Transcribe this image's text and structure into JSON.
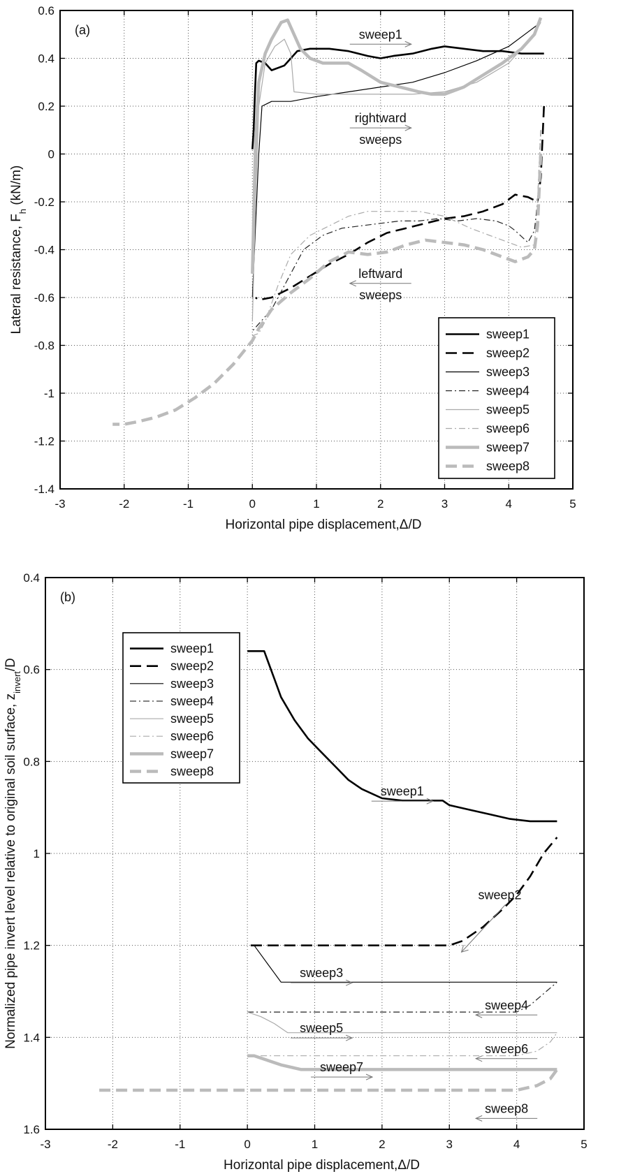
{
  "chart_data": [
    {
      "id": "a",
      "type": "line",
      "panel_label": "(a)",
      "xlabel": "Horizontal pipe displacement,Δ/D",
      "ylabel_main": "Lateral resistance, F",
      "ylabel_sub": "h",
      "ylabel_unit": " (kN/m)",
      "xlim": [
        -3,
        5
      ],
      "ylim": [
        -1.4,
        0.6
      ],
      "xticks": [
        -3,
        -2,
        -1,
        0,
        1,
        2,
        3,
        4,
        5
      ],
      "yticks": [
        0.6,
        0.4,
        0.2,
        0,
        -0.2,
        -0.4,
        -0.6,
        -0.8,
        -1,
        -1.2,
        -1.4
      ],
      "xtick_labels": [
        "-3",
        "-2",
        "-1",
        "0",
        "1",
        "2",
        "3",
        "4",
        "5"
      ],
      "ytick_labels": [
        "0.6",
        "0.4",
        "0.2",
        "0",
        "-0.2",
        "-0.4",
        "-0.6",
        "-0.8",
        "-1",
        "-1.2",
        "-1.4"
      ],
      "grid": true,
      "legend_position": "bottom-right",
      "annotations": [
        {
          "text": "sweep1",
          "x": 2.0,
          "y": 0.5,
          "arrow": "right"
        },
        {
          "text": "rightward",
          "x": 2.0,
          "y": 0.15,
          "arrow": "right"
        },
        {
          "text": "sweeps",
          "x": 2.0,
          "y": 0.06,
          "arrow": "none"
        },
        {
          "text": "leftward",
          "x": 2.0,
          "y": -0.5,
          "arrow": "left"
        },
        {
          "text": "sweeps",
          "x": 2.0,
          "y": -0.59,
          "arrow": "none"
        }
      ],
      "series": [
        {
          "name": "sweep1",
          "color": "#000000",
          "style": "solid",
          "width": 2.6,
          "x": [
            0,
            0.02,
            0.04,
            0.06,
            0.1,
            0.2,
            0.3,
            0.5,
            0.7,
            0.9,
            1.2,
            1.5,
            1.8,
            2.0,
            2.2,
            2.5,
            2.8,
            3.0,
            3.3,
            3.6,
            3.9,
            4.2,
            4.5,
            4.55
          ],
          "y": [
            0.02,
            0.1,
            0.25,
            0.38,
            0.39,
            0.38,
            0.35,
            0.37,
            0.43,
            0.44,
            0.44,
            0.43,
            0.41,
            0.4,
            0.41,
            0.42,
            0.44,
            0.45,
            0.44,
            0.43,
            0.43,
            0.42,
            0.42,
            0.42
          ]
        },
        {
          "name": "sweep2",
          "color": "#000000",
          "style": "dashed",
          "width": 2.6,
          "x": [
            4.55,
            4.5,
            4.45,
            4.3,
            4.1,
            3.9,
            3.6,
            3.3,
            3.0,
            2.7,
            2.4,
            2.1,
            1.8,
            1.5,
            1.2,
            0.9,
            0.6,
            0.3,
            0.1,
            0.05
          ],
          "y": [
            0.2,
            -0.1,
            -0.2,
            -0.18,
            -0.17,
            -0.21,
            -0.24,
            -0.26,
            -0.27,
            -0.29,
            -0.31,
            -0.33,
            -0.37,
            -0.42,
            -0.46,
            -0.51,
            -0.56,
            -0.6,
            -0.61,
            -0.6
          ]
        },
        {
          "name": "sweep3",
          "color": "#000000",
          "style": "solid",
          "width": 1.2,
          "x": [
            0,
            0.05,
            0.1,
            0.15,
            0.3,
            0.6,
            1.0,
            1.5,
            2.0,
            2.5,
            3.0,
            3.5,
            4.0,
            4.3,
            4.5
          ],
          "y": [
            -0.6,
            -0.3,
            0.0,
            0.2,
            0.22,
            0.22,
            0.24,
            0.26,
            0.28,
            0.3,
            0.34,
            0.39,
            0.45,
            0.51,
            0.55
          ]
        },
        {
          "name": "sweep4",
          "color": "#222222",
          "style": "dashdot",
          "width": 1.2,
          "x": [
            4.5,
            4.45,
            4.4,
            4.3,
            4.1,
            4.0,
            3.8,
            3.5,
            3.2,
            2.9,
            2.6,
            2.3,
            2.0,
            1.7,
            1.4,
            1.1,
            0.8,
            0.5,
            0.3,
            0.1,
            0.0
          ],
          "y": [
            0.1,
            -0.2,
            -0.32,
            -0.37,
            -0.32,
            -0.3,
            -0.28,
            -0.27,
            -0.28,
            -0.27,
            -0.28,
            -0.28,
            -0.29,
            -0.3,
            -0.31,
            -0.34,
            -0.4,
            -0.55,
            -0.65,
            -0.71,
            -0.74
          ]
        },
        {
          "name": "sweep5",
          "color": "#aaaaaa",
          "style": "solid",
          "width": 1.2,
          "x": [
            0,
            0.05,
            0.1,
            0.2,
            0.35,
            0.5,
            0.6,
            0.65,
            1.0,
            1.5,
            2.0,
            2.5,
            3.0,
            3.5,
            4.0,
            4.4,
            4.5
          ],
          "y": [
            -0.7,
            -0.2,
            0.2,
            0.38,
            0.45,
            0.48,
            0.42,
            0.26,
            0.25,
            0.25,
            0.25,
            0.25,
            0.26,
            0.3,
            0.38,
            0.5,
            0.55
          ]
        },
        {
          "name": "sweep6",
          "color": "#aaaaaa",
          "style": "dashdot",
          "width": 1.2,
          "x": [
            4.5,
            4.45,
            4.4,
            4.2,
            4.0,
            3.7,
            3.4,
            3.0,
            2.6,
            2.2,
            1.8,
            1.5,
            1.2,
            0.9,
            0.6,
            0.4,
            0.2,
            0.1,
            0.0
          ],
          "y": [
            0.1,
            -0.2,
            -0.38,
            -0.39,
            -0.37,
            -0.34,
            -0.31,
            -0.26,
            -0.24,
            -0.24,
            -0.24,
            -0.26,
            -0.3,
            -0.34,
            -0.42,
            -0.55,
            -0.7,
            -0.75,
            -0.76
          ]
        },
        {
          "name": "sweep7",
          "color": "#bbbbbb",
          "style": "solid",
          "width": 4.5,
          "x": [
            0,
            0.05,
            0.1,
            0.2,
            0.3,
            0.45,
            0.55,
            0.65,
            0.75,
            0.9,
            1.1,
            1.3,
            1.5,
            1.7,
            2.0,
            2.3,
            2.6,
            2.8,
            3.0,
            3.3,
            3.6,
            3.9,
            4.2,
            4.4,
            4.5
          ],
          "y": [
            -0.5,
            0.05,
            0.3,
            0.42,
            0.48,
            0.55,
            0.56,
            0.5,
            0.44,
            0.4,
            0.38,
            0.38,
            0.38,
            0.35,
            0.3,
            0.28,
            0.26,
            0.25,
            0.25,
            0.28,
            0.33,
            0.38,
            0.44,
            0.5,
            0.57
          ]
        },
        {
          "name": "sweep8",
          "color": "#bbbbbb",
          "style": "dashed",
          "width": 4.5,
          "x": [
            4.5,
            4.45,
            4.4,
            4.3,
            4.1,
            3.9,
            3.6,
            3.3,
            3.0,
            2.7,
            2.4,
            2.1,
            1.8,
            1.5,
            1.2,
            0.9,
            0.6,
            0.3,
            0.1,
            0.0,
            -0.3,
            -0.6,
            -0.9,
            -1.2,
            -1.5,
            -1.8,
            -2.0,
            -2.1,
            -2.18
          ],
          "y": [
            0.0,
            -0.3,
            -0.4,
            -0.43,
            -0.45,
            -0.43,
            -0.4,
            -0.38,
            -0.37,
            -0.36,
            -0.38,
            -0.41,
            -0.42,
            -0.41,
            -0.45,
            -0.52,
            -0.58,
            -0.65,
            -0.73,
            -0.78,
            -0.88,
            -0.96,
            -1.02,
            -1.07,
            -1.1,
            -1.12,
            -1.13,
            -1.13,
            -1.13
          ]
        }
      ]
    },
    {
      "id": "b",
      "type": "line",
      "panel_label": "(b)",
      "xlabel": "Horizontal pipe displacement,Δ/D",
      "ylabel_main": "Normalized pipe invert level relative to original soil surface, z",
      "ylabel_sub": "invert",
      "ylabel_unit": "/D",
      "xlim": [
        -3,
        5
      ],
      "ylim": [
        0.4,
        1.6
      ],
      "y_inverted": true,
      "xticks": [
        -3,
        -2,
        -1,
        0,
        1,
        2,
        3,
        4,
        5
      ],
      "yticks": [
        0.4,
        0.6,
        0.8,
        1,
        1.2,
        1.4,
        1.6
      ],
      "xtick_labels": [
        "-3",
        "-2",
        "-1",
        "0",
        "1",
        "2",
        "3",
        "4",
        "5"
      ],
      "ytick_labels": [
        "0.4",
        "0.6",
        "0.8",
        "1",
        "1.2",
        "1.4",
        "1.6"
      ],
      "grid": true,
      "legend_position": "left",
      "annotations": [
        {
          "text": "sweep1",
          "x": 2.3,
          "y": 0.865,
          "arrow": "right"
        },
        {
          "text": "sweep2",
          "x": 3.75,
          "y": 1.09,
          "arrow": "down-left"
        },
        {
          "text": "sweep3",
          "x": 1.1,
          "y": 1.26,
          "arrow": "right"
        },
        {
          "text": "sweep4",
          "x": 3.85,
          "y": 1.33,
          "arrow": "left"
        },
        {
          "text": "sweep5",
          "x": 1.1,
          "y": 1.38,
          "arrow": "right"
        },
        {
          "text": "sweep6",
          "x": 3.85,
          "y": 1.425,
          "arrow": "left"
        },
        {
          "text": "sweep7",
          "x": 1.4,
          "y": 1.465,
          "arrow": "right"
        },
        {
          "text": "sweep8",
          "x": 3.85,
          "y": 1.555,
          "arrow": "left"
        }
      ],
      "series": [
        {
          "name": "sweep1",
          "color": "#000000",
          "style": "solid",
          "width": 2.6,
          "x": [
            0,
            0.25,
            0.3,
            0.4,
            0.5,
            0.7,
            0.9,
            1.1,
            1.3,
            1.5,
            1.7,
            2.0,
            2.3,
            2.6,
            2.9,
            3.0,
            3.3,
            3.6,
            3.9,
            4.2,
            4.6
          ],
          "y": [
            0.56,
            0.56,
            0.58,
            0.62,
            0.66,
            0.71,
            0.75,
            0.78,
            0.81,
            0.84,
            0.86,
            0.88,
            0.885,
            0.885,
            0.885,
            0.895,
            0.905,
            0.915,
            0.925,
            0.93,
            0.93
          ]
        },
        {
          "name": "sweep2",
          "color": "#000000",
          "style": "dashed",
          "width": 2.6,
          "x": [
            0.05,
            1.0,
            2.0,
            3.0,
            3.2,
            3.5,
            3.8,
            4.0,
            4.2,
            4.4,
            4.6
          ],
          "y": [
            1.2,
            1.2,
            1.2,
            1.2,
            1.19,
            1.16,
            1.12,
            1.09,
            1.05,
            1.0,
            0.965
          ]
        },
        {
          "name": "sweep3",
          "color": "#000000",
          "style": "solid",
          "width": 1.2,
          "x": [
            4.6,
            3.5,
            2.5,
            1.5,
            0.5,
            0.4,
            0.3,
            0.2,
            0.1
          ],
          "y": [
            1.28,
            1.28,
            1.28,
            1.28,
            1.28,
            1.26,
            1.24,
            1.22,
            1.2
          ]
        },
        {
          "name": "sweep4",
          "color": "#222222",
          "style": "dashdot",
          "width": 1.2,
          "x": [
            0.0,
            1.0,
            2.0,
            3.0,
            4.0,
            4.2,
            4.4,
            4.6
          ],
          "y": [
            1.345,
            1.345,
            1.345,
            1.345,
            1.345,
            1.33,
            1.305,
            1.28
          ]
        },
        {
          "name": "sweep5",
          "color": "#aaaaaa",
          "style": "solid",
          "width": 1.2,
          "x": [
            4.6,
            3.5,
            2.5,
            1.5,
            0.6,
            0.4,
            0.2,
            0.0
          ],
          "y": [
            1.39,
            1.39,
            1.39,
            1.39,
            1.39,
            1.37,
            1.355,
            1.345
          ]
        },
        {
          "name": "sweep6",
          "color": "#aaaaaa",
          "style": "dashdot",
          "width": 1.2,
          "x": [
            0.0,
            1.0,
            2.0,
            3.0,
            4.0,
            4.3,
            4.5,
            4.6
          ],
          "y": [
            1.44,
            1.44,
            1.44,
            1.44,
            1.44,
            1.43,
            1.41,
            1.39
          ]
        },
        {
          "name": "sweep7",
          "color": "#bbbbbb",
          "style": "solid",
          "width": 4.5,
          "x": [
            4.6,
            3.5,
            2.5,
            1.5,
            0.8,
            0.5,
            0.3,
            0.1,
            0.0
          ],
          "y": [
            1.47,
            1.47,
            1.47,
            1.47,
            1.47,
            1.46,
            1.45,
            1.44,
            1.44
          ]
        },
        {
          "name": "sweep8",
          "color": "#bbbbbb",
          "style": "dashed",
          "width": 4.5,
          "x": [
            -2.2,
            -1.0,
            0.0,
            1.0,
            2.0,
            3.0,
            4.0,
            4.3,
            4.5,
            4.6
          ],
          "y": [
            1.515,
            1.515,
            1.515,
            1.515,
            1.515,
            1.515,
            1.515,
            1.505,
            1.49,
            1.47
          ]
        }
      ]
    }
  ]
}
